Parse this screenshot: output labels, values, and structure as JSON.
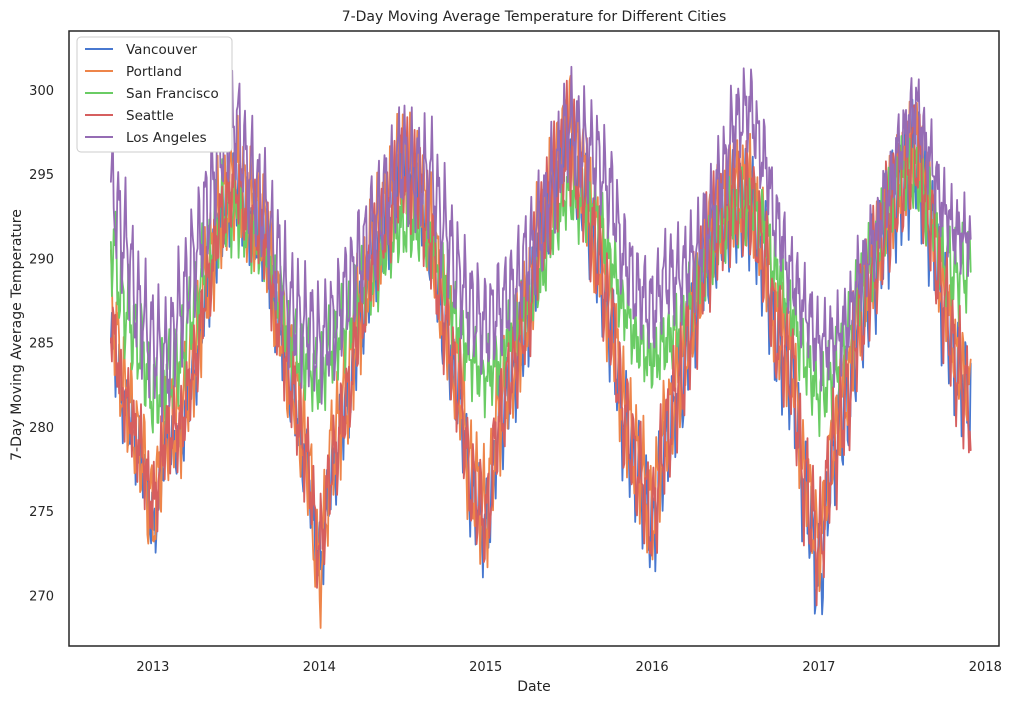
{
  "chart_data": {
    "type": "line",
    "title": "7-Day Moving Average Temperature for Different Cities",
    "xlabel": "Date",
    "ylabel": "7-Day Moving Average Temperature",
    "x_ticks": [
      "2013",
      "2014",
      "2015",
      "2016",
      "2017",
      "2018"
    ],
    "y_ticks": [
      270,
      275,
      280,
      285,
      290,
      295,
      300
    ],
    "xlim": [
      "2012-07-01",
      "2018-01-31"
    ],
    "ylim": [
      267,
      303.5
    ],
    "grid": false,
    "legend_position": "top-left",
    "x": [
      "2012-10-01",
      "2012-11-01",
      "2012-12-01",
      "2013-01-01",
      "2013-02-01",
      "2013-03-01",
      "2013-04-01",
      "2013-05-01",
      "2013-06-01",
      "2013-07-01",
      "2013-08-01",
      "2013-09-01",
      "2013-10-01",
      "2013-11-01",
      "2013-12-01",
      "2014-01-01",
      "2014-02-01",
      "2014-03-01",
      "2014-04-01",
      "2014-05-01",
      "2014-06-01",
      "2014-07-01",
      "2014-08-01",
      "2014-09-01",
      "2014-10-01",
      "2014-11-01",
      "2014-12-01",
      "2015-01-01",
      "2015-02-01",
      "2015-03-01",
      "2015-04-01",
      "2015-05-01",
      "2015-06-01",
      "2015-07-01",
      "2015-08-01",
      "2015-09-01",
      "2015-10-01",
      "2015-11-01",
      "2015-12-01",
      "2016-01-01",
      "2016-02-01",
      "2016-03-01",
      "2016-04-01",
      "2016-05-01",
      "2016-06-01",
      "2016-07-01",
      "2016-08-01",
      "2016-09-01",
      "2016-10-01",
      "2016-11-01",
      "2016-12-01",
      "2017-01-01",
      "2017-02-01",
      "2017-03-01",
      "2017-04-01",
      "2017-05-01",
      "2017-06-01",
      "2017-07-01",
      "2017-08-01",
      "2017-09-01",
      "2017-10-01",
      "2017-11-01",
      "2017-12-01"
    ],
    "series": [
      {
        "name": "Vancouver",
        "color": "#4878d0",
        "values": [
          285.0,
          281.0,
          278.5,
          274.0,
          279.0,
          279.0,
          283.0,
          288.0,
          292.0,
          294.0,
          292.0,
          291.0,
          286.0,
          282.0,
          278.0,
          272.0,
          277.5,
          281.0,
          286.0,
          290.0,
          292.0,
          295.0,
          294.0,
          291.0,
          286.0,
          282.0,
          276.0,
          274.0,
          280.0,
          283.0,
          286.0,
          291.0,
          294.0,
          297.0,
          294.0,
          290.0,
          286.0,
          280.0,
          277.0,
          274.0,
          279.0,
          282.0,
          286.0,
          290.0,
          292.0,
          293.0,
          293.0,
          290.0,
          285.0,
          283.0,
          276.0,
          271.0,
          278.0,
          281.0,
          286.0,
          289.0,
          292.0,
          294.0,
          296.0,
          292.0,
          287.0,
          283.0,
          281.5
        ]
      },
      {
        "name": "Portland",
        "color": "#ee854a",
        "values": [
          287.0,
          282.0,
          279.0,
          275.0,
          280.0,
          280.5,
          284.0,
          289.0,
          293.0,
          295.0,
          293.0,
          292.0,
          287.0,
          283.0,
          279.0,
          271.5,
          279.0,
          282.0,
          287.0,
          291.0,
          293.0,
          296.0,
          295.0,
          292.0,
          287.0,
          283.0,
          277.0,
          275.0,
          281.0,
          284.0,
          287.0,
          292.0,
          295.0,
          298.0,
          295.0,
          291.0,
          287.0,
          281.0,
          278.0,
          275.0,
          280.0,
          283.0,
          287.0,
          291.0,
          293.0,
          294.0,
          294.0,
          291.0,
          286.0,
          284.0,
          277.0,
          273.0,
          279.0,
          282.0,
          287.0,
          290.0,
          293.0,
          295.0,
          297.0,
          293.0,
          288.0,
          284.0,
          282.0
        ]
      },
      {
        "name": "San Francisco",
        "color": "#6acc64",
        "values": [
          291.0,
          287.0,
          285.0,
          282.0,
          283.0,
          284.0,
          287.0,
          290.0,
          293.0,
          293.0,
          292.0,
          291.0,
          288.0,
          285.0,
          284.0,
          283.0,
          285.0,
          286.0,
          288.0,
          289.0,
          291.0,
          292.0,
          292.0,
          291.0,
          289.0,
          286.0,
          284.0,
          283.0,
          284.0,
          286.0,
          287.0,
          289.0,
          292.0,
          294.0,
          293.0,
          293.0,
          290.0,
          287.0,
          285.0,
          284.0,
          285.0,
          286.0,
          288.0,
          290.0,
          292.0,
          293.0,
          293.0,
          292.0,
          289.0,
          287.0,
          284.0,
          282.0,
          283.0,
          285.0,
          288.0,
          290.0,
          293.0,
          295.0,
          295.0,
          293.0,
          290.0,
          289.0,
          289.5
        ]
      },
      {
        "name": "Seattle",
        "color": "#d65f5f",
        "values": [
          286.0,
          281.5,
          279.0,
          275.5,
          279.5,
          280.0,
          283.5,
          288.5,
          292.5,
          294.5,
          292.5,
          291.5,
          286.5,
          282.5,
          278.5,
          273.0,
          278.0,
          281.5,
          286.5,
          290.5,
          292.5,
          295.5,
          294.5,
          291.5,
          286.5,
          282.5,
          276.5,
          274.5,
          280.5,
          283.5,
          286.5,
          291.5,
          294.5,
          297.0,
          294.5,
          290.5,
          286.5,
          280.5,
          277.5,
          274.5,
          279.5,
          282.5,
          286.5,
          290.5,
          292.5,
          293.5,
          293.5,
          290.5,
          285.5,
          283.5,
          276.5,
          273.0,
          278.5,
          281.5,
          286.5,
          289.5,
          292.5,
          294.5,
          296.5,
          292.5,
          287.5,
          283.5,
          281.0
        ]
      },
      {
        "name": "Los Angeles",
        "color": "#956cb4",
        "values": [
          294.0,
          291.0,
          287.0,
          285.0,
          284.0,
          287.0,
          290.0,
          293.0,
          297.0,
          298.0,
          295.0,
          293.0,
          290.0,
          287.0,
          286.0,
          285.0,
          286.0,
          288.0,
          290.0,
          292.0,
          294.0,
          296.0,
          295.0,
          295.0,
          292.0,
          289.0,
          287.0,
          286.0,
          287.0,
          288.0,
          290.0,
          292.0,
          295.0,
          298.0,
          297.0,
          296.0,
          294.0,
          290.0,
          288.0,
          287.0,
          289.0,
          289.0,
          290.0,
          292.0,
          295.0,
          298.0,
          299.0,
          296.0,
          292.0,
          289.0,
          287.0,
          285.0,
          285.0,
          286.0,
          289.0,
          291.0,
          294.0,
          297.0,
          299.0,
          296.0,
          293.0,
          291.5,
          291.3
        ]
      }
    ]
  }
}
